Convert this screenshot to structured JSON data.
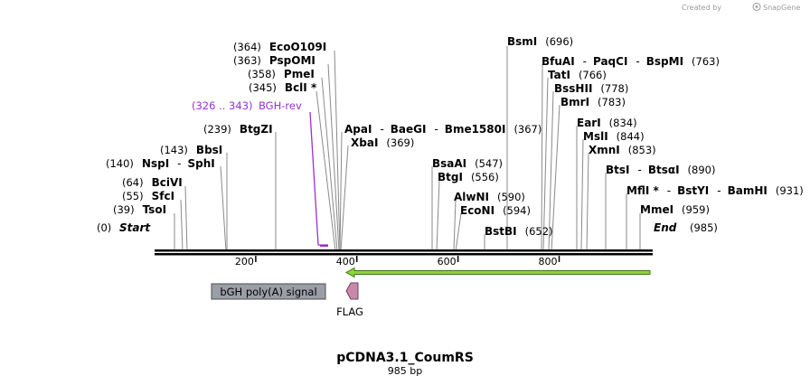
{
  "brand": {
    "created_by": "Created by",
    "name": "SnapGene"
  },
  "plasmid": {
    "name": "pCDNA3.1_CoumRS",
    "length_label": "985 bp",
    "length": 985
  },
  "axis": {
    "ticks": [
      {
        "bp": 200,
        "label": "200"
      },
      {
        "bp": 400,
        "label": "400"
      },
      {
        "bp": 600,
        "label": "600"
      },
      {
        "bp": 800,
        "label": "800"
      }
    ]
  },
  "sites": [
    {
      "id": "emmei",
      "line": 0,
      "tokens": [
        {
          "k": "enz",
          "t": "MmeI"
        },
        {
          "k": "pos",
          "t": "(959)"
        }
      ]
    },
    {
      "id": "mfli",
      "line": 1,
      "tokens": [
        {
          "k": "enz",
          "t": "MflI *"
        },
        {
          "k": "sep",
          "t": "-"
        },
        {
          "k": "enz",
          "t": "BstYI"
        },
        {
          "k": "sep",
          "t": "-"
        },
        {
          "k": "enz",
          "t": "BamHI"
        },
        {
          "k": "pos",
          "t": "(931)"
        }
      ]
    },
    {
      "id": "btsi",
      "line": 2,
      "tokens": [
        {
          "k": "enz",
          "t": "BtsI"
        },
        {
          "k": "sep",
          "t": "-"
        },
        {
          "k": "enz",
          "t": "BtsαI"
        },
        {
          "k": "pos",
          "t": "(890)"
        }
      ]
    },
    {
      "id": "xmni",
      "line": 3,
      "tokens": [
        {
          "k": "enz",
          "t": "XmnI"
        },
        {
          "k": "pos",
          "t": "(853)"
        }
      ]
    },
    {
      "id": "msli",
      "line": 4,
      "tokens": [
        {
          "k": "enz",
          "t": "MslI"
        },
        {
          "k": "pos",
          "t": "(844)"
        }
      ]
    },
    {
      "id": "eari",
      "line": 5,
      "tokens": [
        {
          "k": "enz",
          "t": "EarI"
        },
        {
          "k": "pos",
          "t": "(834)"
        }
      ]
    },
    {
      "id": "bmri",
      "line": 6,
      "tokens": [
        {
          "k": "enz",
          "t": "BmrI"
        },
        {
          "k": "pos",
          "t": "(783)"
        }
      ]
    },
    {
      "id": "bsshii",
      "line": 7,
      "tokens": [
        {
          "k": "enz",
          "t": "BssHII"
        },
        {
          "k": "pos",
          "t": "(778)"
        }
      ]
    },
    {
      "id": "tati",
      "line": 8,
      "tokens": [
        {
          "k": "enz",
          "t": "TatI"
        },
        {
          "k": "pos",
          "t": "(766)"
        }
      ]
    },
    {
      "id": "bfuai",
      "line": 9,
      "tokens": [
        {
          "k": "enz",
          "t": "BfuAI"
        },
        {
          "k": "sep",
          "t": "-"
        },
        {
          "k": "enz",
          "t": "PaqCI"
        },
        {
          "k": "sep",
          "t": "-"
        },
        {
          "k": "enz",
          "t": "BspMI"
        },
        {
          "k": "pos",
          "t": "(763)"
        }
      ]
    },
    {
      "id": "bsmi",
      "line": 10,
      "tokens": [
        {
          "k": "enz",
          "t": "BsmI"
        },
        {
          "k": "pos",
          "t": "(696)"
        }
      ]
    },
    {
      "id": "bstbi",
      "line": 11,
      "tokens": [
        {
          "k": "enz",
          "t": "BstBI"
        },
        {
          "k": "pos",
          "t": "(652)"
        }
      ]
    },
    {
      "id": "econi",
      "line": 12,
      "tokens": [
        {
          "k": "enz",
          "t": "EcoNI"
        },
        {
          "k": "pos",
          "t": "(594)"
        }
      ]
    },
    {
      "id": "alwni",
      "line": 13,
      "tokens": [
        {
          "k": "enz",
          "t": "AlwNI"
        },
        {
          "k": "pos",
          "t": "(590)"
        }
      ]
    },
    {
      "id": "btgi",
      "line": 14,
      "tokens": [
        {
          "k": "enz",
          "t": "BtgI"
        },
        {
          "k": "pos",
          "t": "(556)"
        }
      ]
    },
    {
      "id": "bsaai",
      "line": 15,
      "tokens": [
        {
          "k": "enz",
          "t": "BsaAI"
        },
        {
          "k": "pos",
          "t": "(547)"
        }
      ]
    },
    {
      "id": "xbai",
      "line": 16,
      "tokens": [
        {
          "k": "enz",
          "t": "XbaI"
        },
        {
          "k": "pos",
          "t": "(369)"
        }
      ]
    },
    {
      "id": "apai",
      "line": 17,
      "tokens": [
        {
          "k": "enz",
          "t": "ApaI"
        },
        {
          "k": "sep",
          "t": "-"
        },
        {
          "k": "enz",
          "t": "BaeGI"
        },
        {
          "k": "sep",
          "t": "-"
        },
        {
          "k": "enz",
          "t": "Bme1580I"
        },
        {
          "k": "pos",
          "t": "(367)"
        }
      ]
    },
    {
      "id": "ecoo109i",
      "line": 18,
      "tokens": [
        {
          "k": "pos",
          "t": "(364)"
        },
        {
          "k": "enz",
          "t": "EcoO109I"
        }
      ]
    },
    {
      "id": "pspomi",
      "line": 19,
      "tokens": [
        {
          "k": "pos",
          "t": "(363)"
        },
        {
          "k": "enz",
          "t": "PspOMI"
        }
      ]
    },
    {
      "id": "pmei",
      "line": 20,
      "tokens": [
        {
          "k": "pos",
          "t": "(358)"
        },
        {
          "k": "enz",
          "t": "PmeI"
        }
      ]
    },
    {
      "id": "bcli",
      "line": 21,
      "tokens": [
        {
          "k": "pos",
          "t": "(345)"
        },
        {
          "k": "enz",
          "t": "BclI *"
        }
      ]
    },
    {
      "id": "btgzi",
      "line": 22,
      "tokens": [
        {
          "k": "pos",
          "t": "(239)"
        },
        {
          "k": "enz",
          "t": "BtgZI"
        }
      ]
    },
    {
      "id": "bbsi",
      "line": 23,
      "tokens": [
        {
          "k": "pos",
          "t": "(143)"
        },
        {
          "k": "enz",
          "t": "BbsI"
        }
      ]
    },
    {
      "id": "nspi",
      "line": 24,
      "tokens": [
        {
          "k": "pos",
          "t": "(140)"
        },
        {
          "k": "enz",
          "t": "NspI"
        },
        {
          "k": "sep",
          "t": "-"
        },
        {
          "k": "enz",
          "t": "SphI"
        }
      ]
    },
    {
      "id": "bcivi",
      "line": 25,
      "tokens": [
        {
          "k": "pos",
          "t": "(64)"
        },
        {
          "k": "enz",
          "t": "BciVI"
        }
      ]
    },
    {
      "id": "sfci",
      "line": 26,
      "tokens": [
        {
          "k": "pos",
          "t": "(55)"
        },
        {
          "k": "enz",
          "t": "SfcI"
        }
      ]
    },
    {
      "id": "tsoi",
      "line": 27,
      "tokens": [
        {
          "k": "pos",
          "t": "(39)"
        },
        {
          "k": "enz",
          "t": "TsoI"
        }
      ]
    }
  ],
  "ends": {
    "start": {
      "pos": "(0)",
      "label": "Start"
    },
    "end": {
      "label": "End",
      "pos": "(985)"
    }
  },
  "primer": {
    "range": "(326 .. 343)",
    "name": "BGH-rev",
    "color": "#9b30d0"
  },
  "features": {
    "bgh": {
      "label": "bGH poly(A) signal",
      "fill": "#9a9ea6"
    },
    "flag": {
      "label": "FLAG",
      "fill": "#c88aa8"
    },
    "cds": {
      "fill": "#8fd13f",
      "outline": "#3a7a12"
    }
  }
}
